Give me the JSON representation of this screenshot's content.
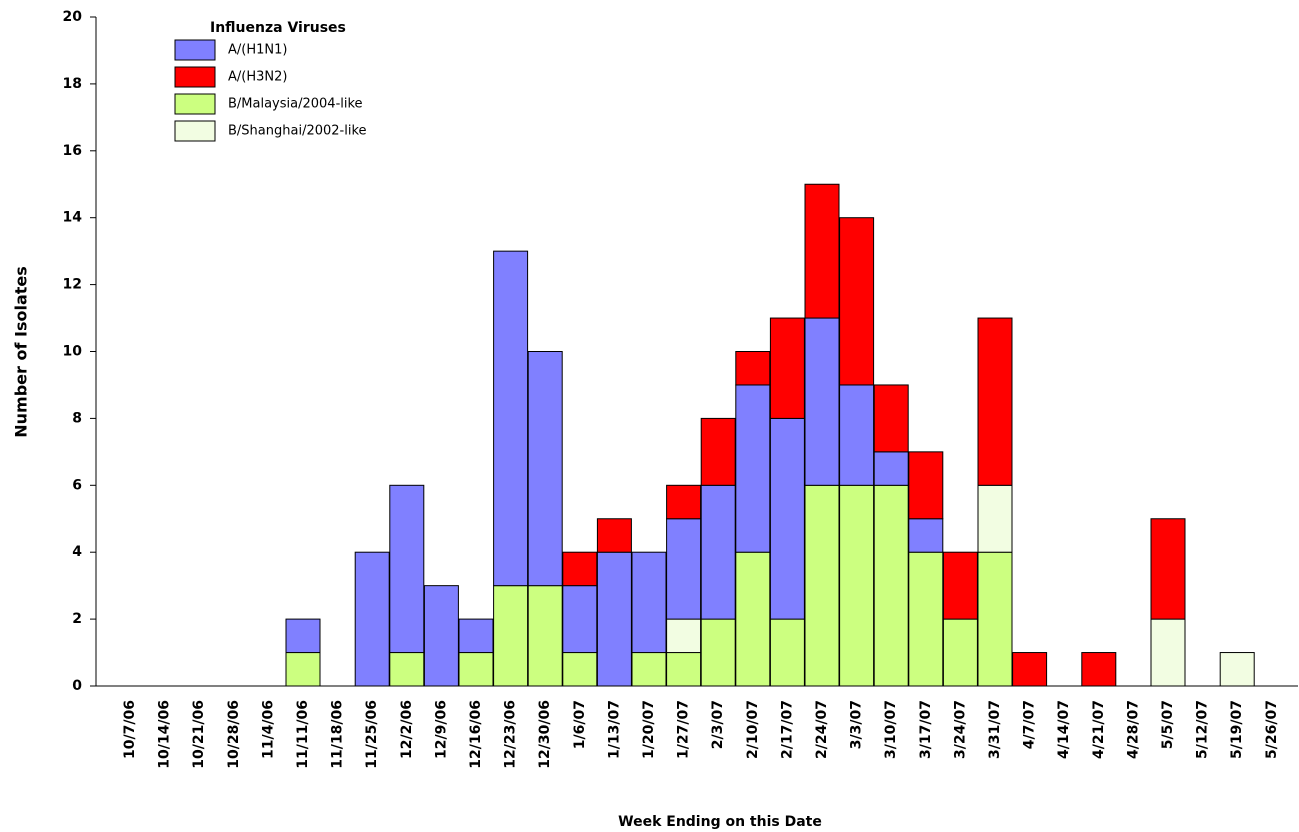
{
  "chart_data": {
    "type": "stacked-bar",
    "y_label": "Number of Isolates",
    "x_label": "Week Ending on this Date",
    "legend_title": "Influenza Viruses",
    "legend": "upper-left",
    "grid": false,
    "categories": [
      "10/7/06",
      "10/14/06",
      "10/21/06",
      "10/28/06",
      "11/4/06",
      "11/11/06",
      "11/18/06",
      "11/25/06",
      "12/2/06",
      "12/9/06",
      "12/16/06",
      "12/23/06",
      "12/30/06",
      "1/6/07",
      "1/13/07",
      "1/20/07",
      "1/27/07",
      "2/3/07",
      "2/10/07",
      "2/17/07",
      "2/24/07",
      "3/3/07",
      "3/10/07",
      "3/17/07",
      "3/24/07",
      "3/31/07",
      "4/7/07",
      "4/14/07",
      "4/21/07",
      "4/28/07",
      "5/5/07",
      "5/12/07",
      "5/19/07",
      "5/26/07"
    ],
    "series": [
      {
        "name": "A/(H1N1)",
        "color": "#8080ff",
        "values": [
          0,
          0,
          0,
          0,
          0,
          1,
          0,
          4,
          5,
          3,
          1,
          10,
          7,
          2,
          4,
          3,
          3,
          4,
          5,
          6,
          5,
          3,
          1,
          1,
          0,
          0,
          0,
          0,
          0,
          0,
          0,
          0,
          0,
          0
        ]
      },
      {
        "name": "A/(H3N2)",
        "color": "#ff0000",
        "values": [
          0,
          0,
          0,
          0,
          0,
          0,
          0,
          0,
          0,
          0,
          0,
          0,
          0,
          1,
          1,
          0,
          1,
          2,
          1,
          3,
          4,
          5,
          2,
          2,
          2,
          5,
          1,
          0,
          1,
          0,
          3,
          0,
          0,
          0
        ]
      },
      {
        "name": "B/Malaysia/2004-like",
        "color": "#ccff80",
        "values": [
          0,
          0,
          0,
          0,
          0,
          1,
          0,
          0,
          1,
          0,
          1,
          3,
          3,
          1,
          0,
          1,
          1,
          2,
          4,
          2,
          6,
          6,
          6,
          4,
          2,
          4,
          0,
          0,
          0,
          0,
          0,
          0,
          0,
          0
        ]
      },
      {
        "name": "B/Shanghai/2002-like",
        "color": "#f2fde2",
        "values": [
          0,
          0,
          0,
          0,
          0,
          0,
          0,
          0,
          0,
          0,
          0,
          0,
          0,
          0,
          0,
          0,
          1,
          0,
          0,
          0,
          0,
          0,
          0,
          0,
          0,
          2,
          0,
          0,
          0,
          0,
          2,
          0,
          1,
          0
        ]
      }
    ],
    "ylim": [
      0,
      20
    ],
    "yticks": [
      0,
      2,
      4,
      6,
      8,
      10,
      12,
      14,
      16,
      18,
      20
    ]
  }
}
